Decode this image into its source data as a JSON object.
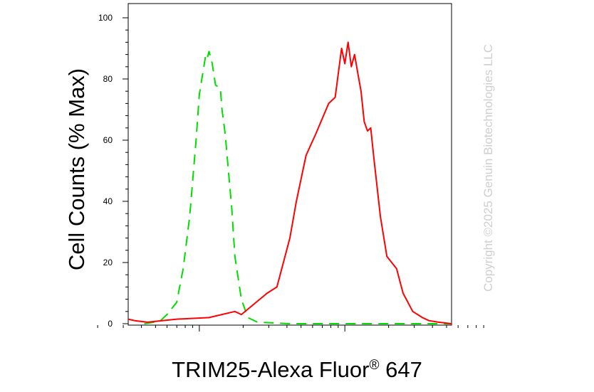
{
  "chart_data": {
    "type": "line",
    "title": "",
    "xlabel": {
      "main": "TRIM25-Alexa Fluor",
      "registered": "®",
      "suffix": "647"
    },
    "ylabel": "Cell Counts (% Max)",
    "ylim": [
      0,
      100
    ],
    "yticks": [
      "0",
      "20",
      "40",
      "60",
      "80",
      "100"
    ],
    "x_scale": "log (biexponential), tick labels not shown",
    "grid": false,
    "series": [
      {
        "color": "#00dd00",
        "style": "dashed",
        "x": [
          0.05,
          0.08,
          0.1,
          0.12,
          0.15,
          0.17,
          0.19,
          0.21,
          0.22,
          0.24,
          0.245,
          0.25,
          0.26,
          0.27,
          0.285,
          0.29,
          0.3,
          0.31,
          0.32,
          0.33,
          0.35,
          0.37,
          0.4,
          0.5,
          0.6,
          0.8,
          1.0
        ],
        "y": [
          0,
          0.5,
          1,
          3,
          7,
          18,
          35,
          60,
          75,
          88,
          87,
          89,
          85,
          78,
          77,
          70,
          62,
          50,
          38,
          22,
          8,
          2,
          0.5,
          0,
          0,
          0,
          0
        ]
      },
      {
        "color": "#ff0000",
        "style": "solid",
        "x": [
          0.0,
          0.02,
          0.06,
          0.15,
          0.25,
          0.33,
          0.35,
          0.43,
          0.46,
          0.5,
          0.52,
          0.55,
          0.58,
          0.62,
          0.64,
          0.65,
          0.66,
          0.67,
          0.68,
          0.69,
          0.7,
          0.71,
          0.72,
          0.73,
          0.74,
          0.75,
          0.76,
          0.78,
          0.8,
          0.83,
          0.85,
          0.88,
          0.91,
          0.93,
          0.96,
          1.0
        ],
        "y": [
          1.5,
          1,
          0.5,
          1.5,
          2,
          4,
          3,
          10,
          12,
          28,
          40,
          55,
          62,
          72,
          74,
          82,
          90,
          85,
          92,
          84,
          88,
          82,
          76,
          66,
          63,
          64,
          54,
          35,
          22,
          18,
          10,
          4,
          2,
          1,
          0.5,
          0
        ]
      }
    ]
  },
  "watermark": "Copyright ©2025 Genuin Biotechnologies LLC"
}
